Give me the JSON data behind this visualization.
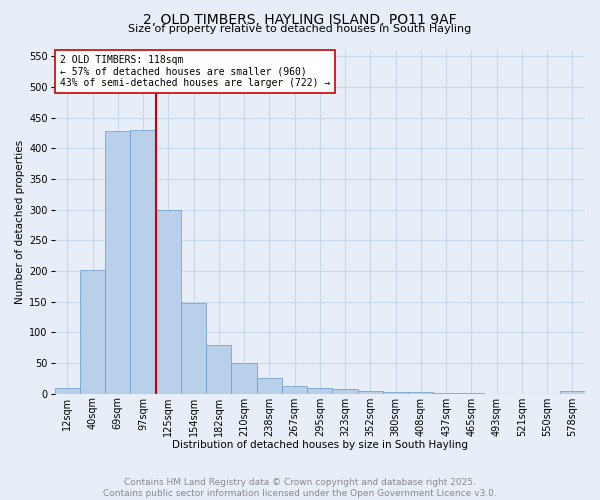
{
  "title_line1": "2, OLD TIMBERS, HAYLING ISLAND, PO11 9AF",
  "title_line2": "Size of property relative to detached houses in South Hayling",
  "xlabel": "Distribution of detached houses by size in South Hayling",
  "ylabel": "Number of detached properties",
  "bar_color": "#b8d0ea",
  "bar_edge_color": "#6699cc",
  "grid_color": "#c8d8ec",
  "background_color": "#e8eef8",
  "vline_color": "#cc0000",
  "vline_x": 4,
  "annotation_text": "2 OLD TIMBERS: 118sqm\n← 57% of detached houses are smaller (960)\n43% of semi-detached houses are larger (722) →",
  "annotation_box_facecolor": "#ffffff",
  "annotation_box_edge": "#cc0000",
  "categories": [
    "12sqm",
    "40sqm",
    "69sqm",
    "97sqm",
    "125sqm",
    "154sqm",
    "182sqm",
    "210sqm",
    "238sqm",
    "267sqm",
    "295sqm",
    "323sqm",
    "352sqm",
    "380sqm",
    "408sqm",
    "437sqm",
    "465sqm",
    "493sqm",
    "521sqm",
    "550sqm",
    "578sqm"
  ],
  "values": [
    10,
    202,
    428,
    430,
    300,
    147,
    80,
    50,
    25,
    13,
    10,
    8,
    5,
    3,
    2,
    1,
    1,
    0,
    0,
    0,
    4
  ],
  "ylim": [
    0,
    560
  ],
  "yticks": [
    0,
    50,
    100,
    150,
    200,
    250,
    300,
    350,
    400,
    450,
    500,
    550
  ],
  "footer_text": "Contains HM Land Registry data © Crown copyright and database right 2025.\nContains public sector information licensed under the Open Government Licence v3.0.",
  "footer_color": "#888888",
  "title_color": "#000000",
  "title_fontsize": 10,
  "subtitle_fontsize": 8,
  "footer_fontsize": 6.5,
  "axis_label_fontsize": 7.5,
  "tick_fontsize": 7,
  "annot_fontsize": 7
}
